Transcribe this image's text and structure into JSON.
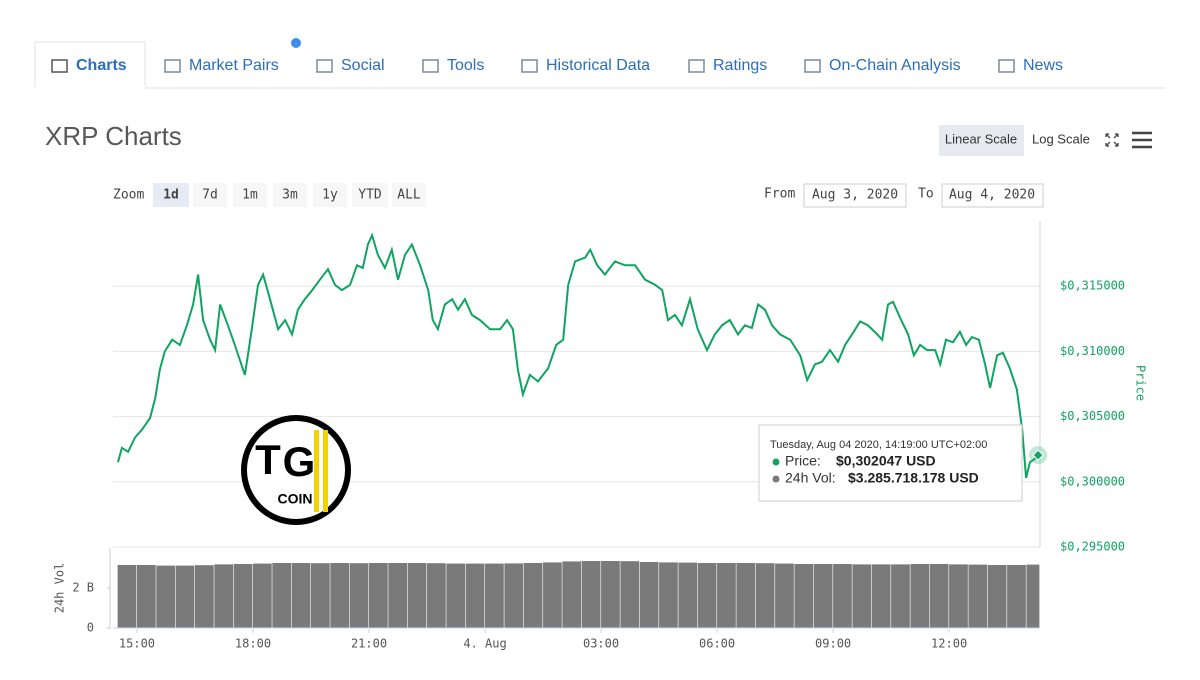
{
  "tabs": [
    "Charts",
    "Market Pairs",
    "Social",
    "Tools",
    "Historical Data",
    "Ratings",
    "On-Chain Analysis",
    "News"
  ],
  "title": "XRP Charts",
  "scale_options": [
    "Linear Scale",
    "Log Scale"
  ],
  "zoom": {
    "label": "Zoom",
    "options": [
      "1d",
      "7d",
      "1m",
      "3m",
      "1y",
      "YTD",
      "ALL"
    ]
  },
  "range": {
    "from_label": "From",
    "from": "Aug 3, 2020",
    "to_label": "To",
    "to": "Aug 4, 2020"
  },
  "watermark": {
    "letters": [
      "T",
      "G"
    ],
    "text": "COIN"
  },
  "chart_data": [
    {
      "type": "line",
      "ylabel": "Price",
      "grid": true,
      "x": [
        14.51,
        14.61,
        14.77,
        14.95,
        15.13,
        15.34,
        15.47,
        15.59,
        15.72,
        15.91,
        16.11,
        16.29,
        16.45,
        16.58,
        16.71,
        16.89,
        17.02,
        17.15,
        17.35,
        17.53,
        17.79,
        17.97,
        18.13,
        18.26,
        18.44,
        18.65,
        18.83,
        19.01,
        19.16,
        19.34,
        19.53,
        19.73,
        19.94,
        20.12,
        20.3,
        20.51,
        20.69,
        20.84,
        20.97,
        21.08,
        21.23,
        21.41,
        21.59,
        21.75,
        21.93,
        22.11,
        22.32,
        22.53,
        22.65,
        22.78,
        22.96,
        23.15,
        23.3,
        23.48,
        23.66,
        23.87,
        24.13,
        24.39,
        24.57,
        24.72,
        24.85,
        24.98,
        25.16,
        25.37,
        25.63,
        25.84,
        26.02,
        26.15,
        26.33,
        26.59,
        26.72,
        26.9,
        27.1,
        27.36,
        27.62,
        27.88,
        28.14,
        28.4,
        28.58,
        28.73,
        28.91,
        29.09,
        29.3,
        29.5,
        29.74,
        29.94,
        30.13,
        30.33,
        30.54,
        30.72,
        30.9,
        31.06,
        31.24,
        31.42,
        31.63,
        31.89,
        32.15,
        32.33,
        32.53,
        32.71,
        32.92,
        33.13,
        33.31,
        33.49,
        33.7,
        33.9,
        34.11,
        34.27,
        34.42,
        34.55,
        34.73,
        34.94,
        35.09,
        35.25,
        35.43,
        35.64,
        35.77,
        35.92,
        36.1,
        36.28,
        36.44,
        36.59,
        36.77,
        36.93,
        37.06,
        37.24,
        37.39,
        37.57,
        37.75,
        37.89,
        37.99,
        38.09,
        38.24,
        38.3
      ],
      "series": [
        {
          "color": "#10a462",
          "values": [
            0.3015,
            0.3026,
            0.3023,
            0.3034,
            0.304,
            0.3049,
            0.3064,
            0.3086,
            0.31,
            0.3109,
            0.3105,
            0.312,
            0.3136,
            0.3159,
            0.3124,
            0.3109,
            0.3101,
            0.3136,
            0.312,
            0.3105,
            0.3082,
            0.3117,
            0.3151,
            0.3159,
            0.314,
            0.3117,
            0.3124,
            0.3113,
            0.3132,
            0.314,
            0.3147,
            0.3155,
            0.3163,
            0.3151,
            0.3147,
            0.3151,
            0.3166,
            0.3164,
            0.3182,
            0.3189,
            0.3174,
            0.3164,
            0.3178,
            0.3155,
            0.3174,
            0.3182,
            0.3166,
            0.3147,
            0.3124,
            0.3117,
            0.3136,
            0.314,
            0.3132,
            0.314,
            0.3128,
            0.3124,
            0.3117,
            0.3117,
            0.3124,
            0.3117,
            0.3086,
            0.3067,
            0.3082,
            0.3077,
            0.3087,
            0.3105,
            0.3109,
            0.3151,
            0.3169,
            0.3172,
            0.3178,
            0.3166,
            0.3159,
            0.3169,
            0.3166,
            0.3166,
            0.3155,
            0.3151,
            0.3147,
            0.3124,
            0.3128,
            0.312,
            0.314,
            0.3117,
            0.3101,
            0.3113,
            0.312,
            0.3124,
            0.3113,
            0.312,
            0.3118,
            0.3136,
            0.3132,
            0.312,
            0.3113,
            0.3109,
            0.3097,
            0.3078,
            0.309,
            0.3092,
            0.3101,
            0.3092,
            0.3105,
            0.3113,
            0.3123,
            0.312,
            0.3114,
            0.3109,
            0.3136,
            0.3138,
            0.3126,
            0.3113,
            0.3097,
            0.3105,
            0.3101,
            0.3101,
            0.309,
            0.3109,
            0.3107,
            0.3115,
            0.3105,
            0.3111,
            0.3109,
            0.309,
            0.3072,
            0.3097,
            0.3099,
            0.3087,
            0.3071,
            0.304,
            0.3003,
            0.3015,
            0.3018,
            0.302047
          ]
        }
      ],
      "xlim": [
        14.38,
        38.35
      ],
      "ylim": [
        0.295,
        0.32
      ],
      "yticks": [
        {
          "value": 0.295,
          "label": "$0,295000"
        },
        {
          "value": 0.3,
          "label": "$0,300000"
        },
        {
          "value": 0.305,
          "label": "$0,305000"
        },
        {
          "value": 0.31,
          "label": "$0,310000"
        },
        {
          "value": 0.315,
          "label": "$0,315000"
        }
      ],
      "tooltip": {
        "date": "Tuesday, Aug 04 2020, 14:19:00 UTC+02:00",
        "rows": [
          {
            "label": "Price:",
            "value": "$0,302047 USD"
          },
          {
            "label": "24h Vol:",
            "value": "$3.285.718.178 USD"
          }
        ]
      }
    },
    {
      "type": "bar",
      "ylabel": "24h Vol",
      "x": [
        14.5,
        15,
        15.5,
        16,
        16.5,
        17,
        17.5,
        18,
        18.5,
        19,
        19.5,
        20,
        20.5,
        21,
        21.5,
        22,
        22.5,
        23,
        23.5,
        24,
        24.5,
        25,
        25.5,
        26,
        26.5,
        27,
        27.5,
        28,
        28.5,
        29,
        29.5,
        30,
        30.5,
        31,
        31.5,
        32,
        32.5,
        33,
        33.5,
        34,
        34.5,
        35,
        35.5,
        36,
        36.5,
        37,
        37.5,
        38
      ],
      "series": [
        {
          "color": "#7a7a7a",
          "values": [
            3.15,
            3.15,
            3.12,
            3.12,
            3.14,
            3.18,
            3.2,
            3.22,
            3.25,
            3.25,
            3.24,
            3.25,
            3.24,
            3.25,
            3.25,
            3.25,
            3.24,
            3.22,
            3.22,
            3.22,
            3.23,
            3.25,
            3.28,
            3.33,
            3.35,
            3.35,
            3.34,
            3.3,
            3.28,
            3.27,
            3.25,
            3.25,
            3.25,
            3.24,
            3.22,
            3.2,
            3.2,
            3.2,
            3.18,
            3.18,
            3.18,
            3.2,
            3.2,
            3.18,
            3.17,
            3.15,
            3.15,
            3.17
          ]
        }
      ],
      "xlim": [
        14.38,
        38.35
      ],
      "ylim": [
        0,
        4
      ],
      "yticks": [
        0,
        {
          "value": 2,
          "label": "2 B"
        }
      ],
      "xticks": [
        {
          "value": 15,
          "label": "15:00"
        },
        {
          "value": 18,
          "label": "18:00"
        },
        {
          "value": 21,
          "label": "21:00"
        },
        {
          "value": 24,
          "label": "4. Aug"
        },
        {
          "value": 27,
          "label": "03:00"
        },
        {
          "value": 30,
          "label": "06:00"
        },
        {
          "value": 33,
          "label": "09:00"
        },
        {
          "value": 36,
          "label": "12:00"
        }
      ]
    }
  ]
}
